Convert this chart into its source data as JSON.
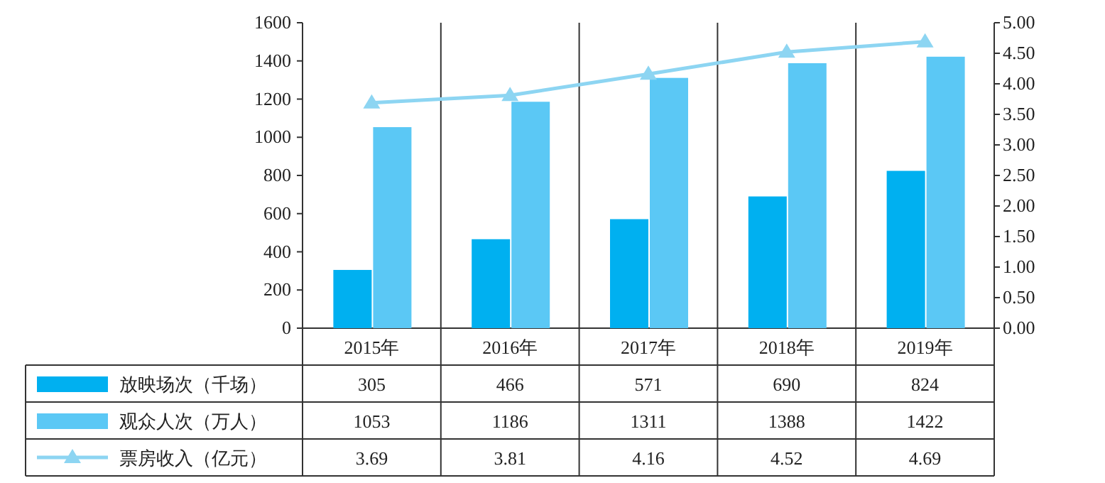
{
  "chart_data": {
    "type": "bar",
    "categories": [
      "2015年",
      "2016年",
      "2017年",
      "2018年",
      "2019年"
    ],
    "series": [
      {
        "name": "放映场次（千场）",
        "color": "#00b0f0",
        "values": [
          305,
          466,
          571,
          690,
          824
        ]
      },
      {
        "name": "观众人次（万人）",
        "color": "#5bc8f5",
        "values": [
          1053,
          1186,
          1311,
          1388,
          1422
        ]
      },
      {
        "name": "票房收入（亿元）",
        "type": "line",
        "axis": "y2",
        "color": "#8dd5f2",
        "marker": "triangle",
        "values": [
          3.69,
          3.81,
          4.16,
          4.52,
          4.69
        ]
      }
    ],
    "ylim": [
      0,
      1600
    ],
    "yticks": [
      0,
      200,
      400,
      600,
      800,
      1000,
      1200,
      1400,
      1600
    ],
    "y2lim": [
      0,
      5
    ],
    "y2ticks": [
      {
        "value": 0,
        "label": "0.00"
      },
      {
        "value": 0.5,
        "label": "0.50"
      },
      {
        "value": 1,
        "label": "1.00"
      },
      {
        "value": 1.5,
        "label": "1.50"
      },
      {
        "value": 2,
        "label": "2.00"
      },
      {
        "value": 2.5,
        "label": "2.50"
      },
      {
        "value": 3,
        "label": "3.00"
      },
      {
        "value": 3.5,
        "label": "3.50"
      },
      {
        "value": 4,
        "label": "4.00"
      },
      {
        "value": 4.5,
        "label": "4.50"
      },
      {
        "value": 5,
        "label": "5.00"
      }
    ],
    "data_labels": true,
    "legend": "bottom left",
    "grid": false
  }
}
